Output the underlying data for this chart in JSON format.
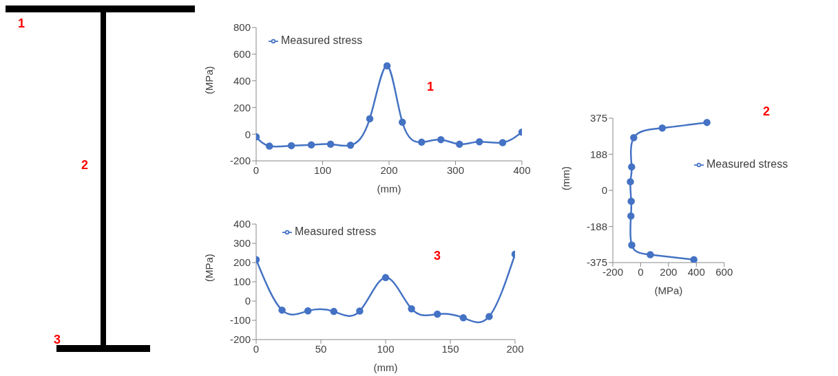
{
  "chart_data": [
    {
      "type": "other",
      "annotations": [
        "1",
        "2",
        "3"
      ]
    },
    {
      "type": "line",
      "x": [
        0,
        20,
        53,
        83,
        112,
        142,
        171,
        197,
        220,
        249,
        278,
        306,
        336,
        371,
        400
      ],
      "series": [
        {
          "name": "Measured stress",
          "color": "#4472c4",
          "values": [
            -20,
            -89,
            -86,
            -80,
            -75,
            -83,
            116,
            513,
            90,
            -60,
            -41,
            -75,
            -57,
            -63,
            15
          ]
        }
      ],
      "xlabel": "(mm)",
      "ylabel": "(MPa)",
      "xlim": [
        0,
        400
      ],
      "xticks": [
        0,
        100,
        200,
        300,
        400
      ],
      "ylim": [
        -200,
        800
      ],
      "yticks": [
        -200,
        0,
        200,
        400,
        600,
        800
      ],
      "legend": "top left",
      "marker": "circle",
      "annotations": [
        "1"
      ]
    },
    {
      "type": "line",
      "x": [
        0,
        20,
        40,
        60,
        80,
        100,
        120,
        140,
        160,
        180,
        200
      ],
      "series": [
        {
          "name": "Measured stress",
          "color": "#4472c4",
          "values": [
            215,
            -47,
            -51,
            -54,
            -52,
            122,
            -40,
            -68,
            -87,
            -80,
            244
          ]
        }
      ],
      "xlabel": "(mm)",
      "ylabel": "(MPa)",
      "xlim": [
        0,
        200
      ],
      "xticks": [
        0,
        50,
        100,
        150,
        200
      ],
      "ylim": [
        -200,
        400
      ],
      "yticks": [
        -200,
        -100,
        0,
        100,
        200,
        300,
        400
      ],
      "legend": "top left",
      "marker": "circle",
      "annotations": [
        "3"
      ]
    },
    {
      "type": "line",
      "x": [
        476,
        155,
        -50,
        -65,
        -74,
        -68,
        -70,
        -64,
        69,
        382
      ],
      "series": [
        {
          "name": "Measured stress",
          "color": "#4472c4",
          "values": [
            353,
            324,
            274,
            122,
            45,
            -56,
            -133,
            -284,
            -334,
            -360
          ]
        }
      ],
      "xlabel": "(MPa)",
      "ylabel": "(mm)",
      "xlim": [
        -200,
        600
      ],
      "xticks": [
        -200,
        0,
        200,
        400,
        600
      ],
      "ylim": [
        -375,
        375
      ],
      "yticks": [
        -375,
        -188,
        0,
        188,
        375
      ],
      "legend": "right",
      "marker": "circle",
      "annotations": [
        "2"
      ]
    }
  ]
}
